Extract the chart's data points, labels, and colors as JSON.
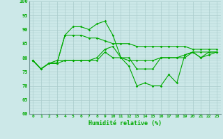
{
  "xlabel": "Humidité relative (%)",
  "xlim": [
    -0.5,
    23.5
  ],
  "ylim": [
    60,
    100
  ],
  "yticks": [
    60,
    65,
    70,
    75,
    80,
    85,
    90,
    95,
    100
  ],
  "xticks": [
    0,
    1,
    2,
    3,
    4,
    5,
    6,
    7,
    8,
    9,
    10,
    11,
    12,
    13,
    14,
    15,
    16,
    17,
    18,
    19,
    20,
    21,
    22,
    23
  ],
  "bg_color": "#cce8e8",
  "grid_color": "#aacccc",
  "line_color": "#00aa00",
  "line1": [
    79,
    76,
    78,
    78,
    88,
    91,
    91,
    90,
    92,
    93,
    88,
    80,
    80,
    76,
    76,
    76,
    80,
    80,
    80,
    80,
    82,
    82,
    82,
    82
  ],
  "line2": [
    79,
    76,
    78,
    78,
    88,
    88,
    88,
    87,
    87,
    86,
    85,
    85,
    85,
    84,
    84,
    84,
    84,
    84,
    84,
    84,
    83,
    83,
    83,
    83
  ],
  "line3": [
    79,
    76,
    78,
    79,
    79,
    79,
    79,
    79,
    80,
    83,
    84,
    80,
    77,
    70,
    71,
    70,
    70,
    74,
    71,
    81,
    82,
    80,
    81,
    82
  ],
  "line4": [
    79,
    76,
    78,
    78,
    79,
    79,
    79,
    79,
    79,
    82,
    80,
    80,
    79,
    79,
    79,
    79,
    80,
    80,
    80,
    81,
    82,
    80,
    82,
    82
  ]
}
